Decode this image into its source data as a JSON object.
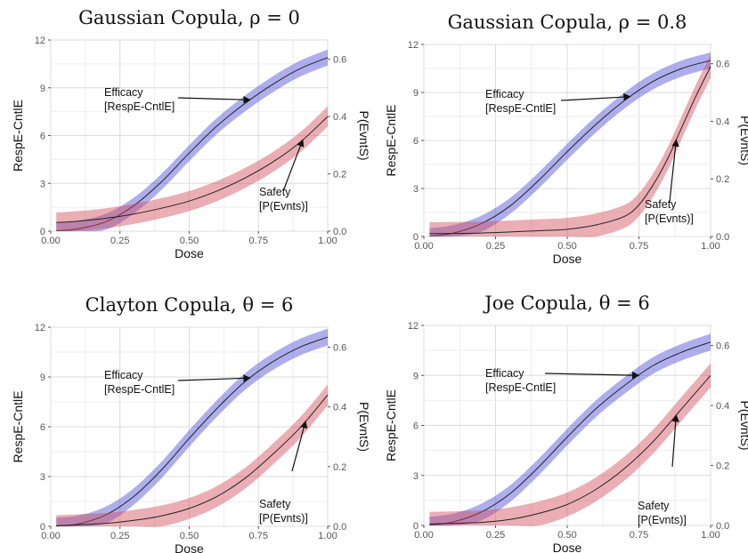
{
  "chart_data": [
    {
      "type": "line",
      "title": "Gaussian Copula, ρ = 0",
      "xlabel": "Dose",
      "ylabel": "RespE-CntlE",
      "y2label": "P(EvntS)",
      "xlim": [
        0,
        1
      ],
      "ylim": [
        0,
        12
      ],
      "y2lim": [
        0,
        0.667
      ],
      "x_ticks": [
        "0.00",
        "0.25",
        "0.50",
        "0.75",
        "1.00"
      ],
      "y_ticks": [
        "0",
        "3",
        "6",
        "9",
        "12"
      ],
      "y2_ticks": [
        "0.0",
        "0.2",
        "0.4",
        "0.6"
      ],
      "grid": true,
      "series": [
        {
          "name": "Efficacy",
          "axis": "left",
          "color": "#4b4bd6",
          "x": [
            0.02,
            0.1,
            0.2,
            0.3,
            0.4,
            0.5,
            0.6,
            0.7,
            0.8,
            0.9,
            1.0
          ],
          "y": [
            0.02,
            0.15,
            0.6,
            1.6,
            3.1,
            4.9,
            6.6,
            8.0,
            9.2,
            10.2,
            10.9
          ],
          "band": 0.5
        },
        {
          "name": "Safety",
          "axis": "right",
          "color": "#d24c5a",
          "x": [
            0.02,
            0.1,
            0.2,
            0.3,
            0.4,
            0.5,
            0.6,
            0.7,
            0.8,
            0.9,
            1.0
          ],
          "y": [
            0.03,
            0.035,
            0.045,
            0.06,
            0.08,
            0.105,
            0.14,
            0.185,
            0.24,
            0.31,
            0.4
          ],
          "band": 0.035
        }
      ],
      "annotations": [
        {
          "lines": [
            "Efficacy",
            "[RespE-CntlE]"
          ],
          "series": 0,
          "point_x": 0.72
        },
        {
          "lines": [
            "Safety",
            "[P(Evnts)]"
          ],
          "series": 1,
          "point_x": 0.91
        }
      ]
    },
    {
      "type": "line",
      "title": "Gaussian Copula, ρ = 0.8",
      "xlabel": "Dose",
      "ylabel": "RespE-CntlE",
      "y2label": "P(EvntS)",
      "xlim": [
        0,
        1
      ],
      "ylim": [
        0,
        12
      ],
      "y2lim": [
        0,
        0.667
      ],
      "x_ticks": [
        "0.00",
        "0.25",
        "0.50",
        "0.75",
        "1.00"
      ],
      "y_ticks": [
        "0",
        "3",
        "6",
        "9",
        "12"
      ],
      "y2_ticks": [
        "0.0",
        "0.2",
        "0.4",
        "0.6"
      ],
      "grid": true,
      "series": [
        {
          "name": "Efficacy",
          "axis": "left",
          "color": "#4b4bd6",
          "x": [
            0.02,
            0.1,
            0.2,
            0.3,
            0.4,
            0.5,
            0.6,
            0.7,
            0.8,
            0.9,
            1.0
          ],
          "y": [
            0.02,
            0.2,
            0.8,
            1.9,
            3.5,
            5.3,
            7.0,
            8.5,
            9.7,
            10.5,
            11.0
          ],
          "band": 0.5
        },
        {
          "name": "Safety",
          "axis": "right",
          "color": "#d24c5a",
          "x": [
            0.02,
            0.2,
            0.4,
            0.5,
            0.6,
            0.7,
            0.75,
            0.8,
            0.85,
            0.9,
            0.95,
            1.0
          ],
          "y": [
            0.01,
            0.012,
            0.02,
            0.025,
            0.04,
            0.07,
            0.11,
            0.18,
            0.27,
            0.38,
            0.49,
            0.59
          ],
          "band": 0.04
        }
      ],
      "annotations": [
        {
          "lines": [
            "Efficacy",
            "[RespE-CntlE]"
          ],
          "series": 0,
          "point_x": 0.72
        },
        {
          "lines": [
            "Safety",
            "[P(Evnts)]"
          ],
          "series": 1,
          "point_x": 0.88
        }
      ]
    },
    {
      "type": "line",
      "title": "Clayton Copula, θ = 6",
      "xlabel": "Dose",
      "ylabel": "RespE-CntlE",
      "y2label": "P(EvntS)",
      "xlim": [
        0,
        1
      ],
      "ylim": [
        0,
        12
      ],
      "y2lim": [
        0,
        0.667
      ],
      "x_ticks": [
        "0.00",
        "0.25",
        "0.50",
        "0.75",
        "1.00"
      ],
      "y_ticks": [
        "0",
        "3",
        "6",
        "9",
        "12"
      ],
      "y2_ticks": [
        "0.0",
        "0.2",
        "0.4",
        "0.6"
      ],
      "grid": true,
      "series": [
        {
          "name": "Efficacy",
          "axis": "left",
          "color": "#4b4bd6",
          "x": [
            0.02,
            0.1,
            0.2,
            0.3,
            0.4,
            0.5,
            0.6,
            0.7,
            0.8,
            0.9,
            1.0
          ],
          "y": [
            0.02,
            0.15,
            0.7,
            1.8,
            3.4,
            5.3,
            7.1,
            8.7,
            9.9,
            10.8,
            11.4
          ],
          "band": 0.5
        },
        {
          "name": "Safety",
          "axis": "right",
          "color": "#d24c5a",
          "x": [
            0.02,
            0.2,
            0.3,
            0.4,
            0.5,
            0.6,
            0.7,
            0.8,
            0.9,
            1.0
          ],
          "y": [
            0.002,
            0.01,
            0.02,
            0.035,
            0.06,
            0.1,
            0.16,
            0.24,
            0.33,
            0.44
          ],
          "band": 0.035
        }
      ],
      "annotations": [
        {
          "lines": [
            "Efficacy",
            "[RespE-CntlE]"
          ],
          "series": 0,
          "point_x": 0.72
        },
        {
          "lines": [
            "Safety",
            "[P(Evnts)]"
          ],
          "series": 1,
          "point_x": 0.92
        }
      ]
    },
    {
      "type": "line",
      "title": "Joe Copula, θ = 6",
      "xlabel": "Dose",
      "ylabel": "RespE-CntlE",
      "y2label": "P(EvntS)",
      "xlim": [
        0,
        1
      ],
      "ylim": [
        0,
        12
      ],
      "y2lim": [
        0,
        0.667
      ],
      "x_ticks": [
        "0.00",
        "0.25",
        "0.50",
        "0.75",
        "1.00"
      ],
      "y_ticks": [
        "0",
        "3",
        "6",
        "9",
        "12"
      ],
      "y2_ticks": [
        "0.0",
        "0.2",
        "0.4",
        "0.6"
      ],
      "grid": true,
      "series": [
        {
          "name": "Efficacy",
          "axis": "left",
          "color": "#4b4bd6",
          "x": [
            0.02,
            0.1,
            0.2,
            0.3,
            0.4,
            0.5,
            0.6,
            0.7,
            0.8,
            0.9,
            1.0
          ],
          "y": [
            0.02,
            0.2,
            0.8,
            1.9,
            3.5,
            5.3,
            7.0,
            8.4,
            9.6,
            10.4,
            11.0
          ],
          "band": 0.5
        },
        {
          "name": "Safety",
          "axis": "right",
          "color": "#d24c5a",
          "x": [
            0.02,
            0.2,
            0.3,
            0.4,
            0.5,
            0.6,
            0.7,
            0.8,
            0.9,
            1.0
          ],
          "y": [
            0.005,
            0.01,
            0.02,
            0.04,
            0.07,
            0.12,
            0.19,
            0.28,
            0.39,
            0.5
          ],
          "band": 0.04
        }
      ],
      "annotations": [
        {
          "lines": [
            "Efficacy",
            "[RespE-CntlE]"
          ],
          "series": 0,
          "point_x": 0.75
        },
        {
          "lines": [
            "Safety",
            "[P(Evnts)]"
          ],
          "series": 1,
          "point_x": 0.88
        }
      ]
    }
  ]
}
